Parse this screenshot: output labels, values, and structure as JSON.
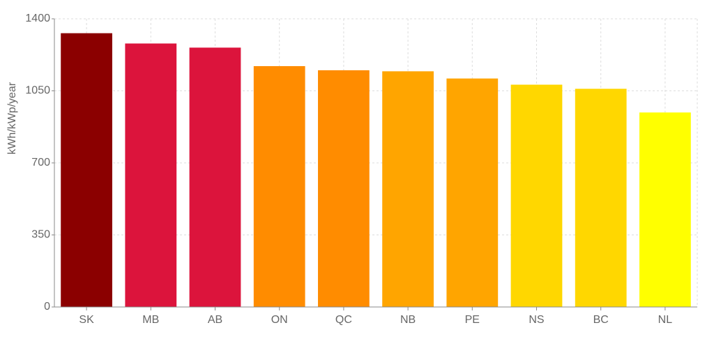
{
  "chart_data": {
    "type": "bar",
    "y_label": "kWh/kWp/year",
    "categories": [
      "SK",
      "MB",
      "AB",
      "ON",
      "QC",
      "NB",
      "PE",
      "NS",
      "BC",
      "NL"
    ],
    "values": [
      1330,
      1280,
      1260,
      1170,
      1150,
      1145,
      1110,
      1080,
      1060,
      945
    ],
    "colors": [
      "#8b0000",
      "#dc143c",
      "#dc143c",
      "#ff8c00",
      "#ff8c00",
      "#ffa500",
      "#ffa500",
      "#ffd700",
      "#ffd700",
      "#ffff00"
    ],
    "ylim": [
      0,
      1400
    ],
    "yticks": [
      0,
      350,
      700,
      1050,
      1400
    ],
    "grid": true
  }
}
